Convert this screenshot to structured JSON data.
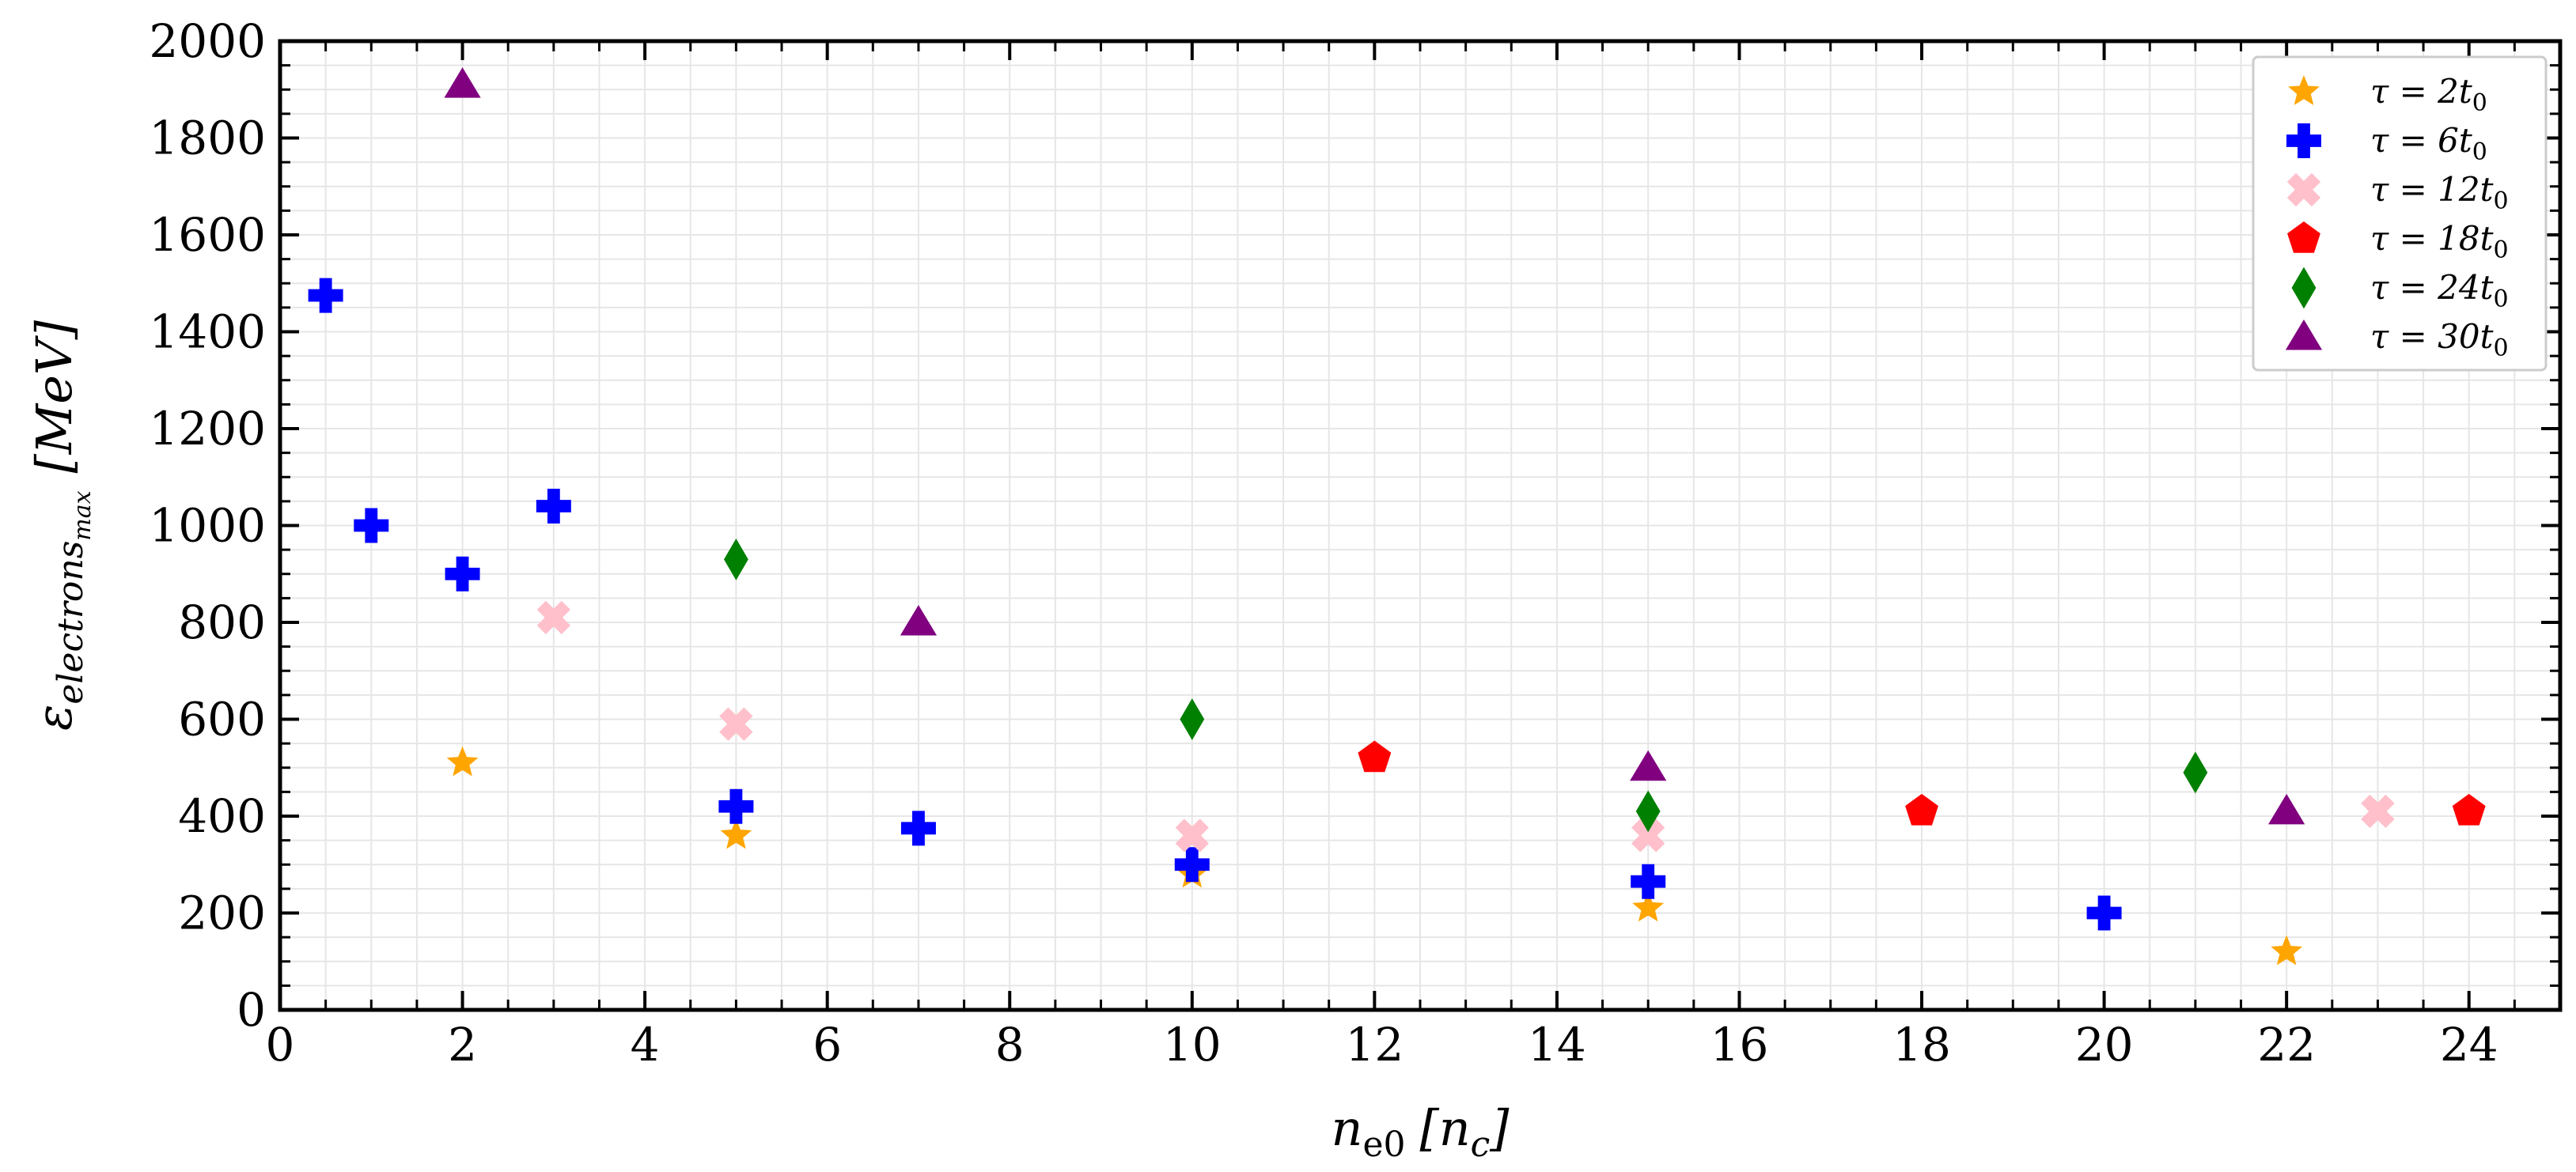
{
  "chart_data": {
    "type": "scatter",
    "title": "",
    "xlabel": "n_e0 [n_c]",
    "ylabel": "ε_electrons_max [MeV]",
    "xlabel_parts": {
      "main": "n",
      "sub": "e0",
      "units": "[n",
      "units_sub": "c",
      "close": "]"
    },
    "ylabel_parts": {
      "main": "ε",
      "sub": "electrons",
      "subsub": "max",
      "units": "[MeV]"
    },
    "xlim": [
      0,
      25
    ],
    "ylim": [
      0,
      2000
    ],
    "xticks": [
      0,
      2,
      4,
      6,
      8,
      10,
      12,
      14,
      16,
      18,
      20,
      22,
      24
    ],
    "yticks": [
      0,
      200,
      400,
      600,
      800,
      1000,
      1200,
      1400,
      1600,
      1800,
      2000
    ],
    "grid": true,
    "legend_position": "top-right",
    "series": [
      {
        "name": "τ = 2t0",
        "label_main": "τ = 2t",
        "label_sub": "0",
        "marker": "star",
        "color": "#FFA500",
        "points": [
          [
            2,
            510
          ],
          [
            5,
            360
          ],
          [
            10,
            280
          ],
          [
            15,
            210
          ],
          [
            22,
            120
          ]
        ]
      },
      {
        "name": "τ = 6t0",
        "label_main": "τ = 6t",
        "label_sub": "0",
        "marker": "plus",
        "color": "#0000FF",
        "points": [
          [
            0.5,
            1475
          ],
          [
            1,
            1000
          ],
          [
            2,
            900
          ],
          [
            3,
            1040
          ],
          [
            5,
            420
          ],
          [
            7,
            375
          ],
          [
            10,
            300
          ],
          [
            15,
            265
          ],
          [
            20,
            200
          ]
        ]
      },
      {
        "name": "τ = 12t0",
        "label_main": "τ = 12t",
        "label_sub": "0",
        "marker": "x",
        "color": "#FFC0CB",
        "points": [
          [
            3,
            810
          ],
          [
            5,
            590
          ],
          [
            10,
            360
          ],
          [
            15,
            360
          ],
          [
            23,
            410
          ]
        ]
      },
      {
        "name": "τ = 18t0",
        "label_main": "τ = 18t",
        "label_sub": "0",
        "marker": "pentagon",
        "color": "#FF0000",
        "points": [
          [
            12,
            520
          ],
          [
            18,
            410
          ],
          [
            24,
            410
          ]
        ]
      },
      {
        "name": "τ = 24t0",
        "label_main": "τ = 24t",
        "label_sub": "0",
        "marker": "diamond",
        "color": "#008000",
        "points": [
          [
            5,
            930
          ],
          [
            10,
            600
          ],
          [
            15,
            410
          ],
          [
            21,
            490
          ]
        ]
      },
      {
        "name": "τ = 30t0",
        "label_main": "τ = 30t",
        "label_sub": "0",
        "marker": "triangle",
        "color": "#800080",
        "points": [
          [
            2,
            1910
          ],
          [
            7,
            800
          ],
          [
            15,
            500
          ],
          [
            22,
            410
          ]
        ]
      }
    ]
  }
}
